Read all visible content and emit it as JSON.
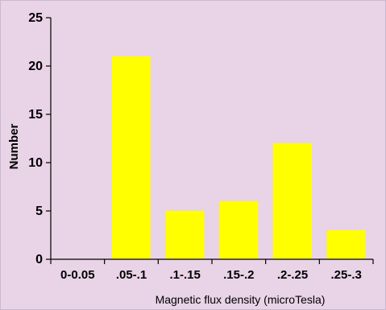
{
  "chart_data": {
    "type": "bar",
    "categories": [
      "0-0.05",
      ".05-.1",
      ".1-.15",
      ".15-.2",
      ".2-.25",
      ".25-.3"
    ],
    "values": [
      0,
      21,
      5,
      6,
      12,
      3
    ],
    "xlabel": "Magnetic flux density (microTesla)",
    "ylabel": "Number",
    "ylim": [
      0,
      25
    ],
    "yticks": [
      0,
      5,
      10,
      15,
      20,
      25
    ],
    "grid": false,
    "bar_color": "#ffff00",
    "background_color": "#e9d3e6"
  }
}
